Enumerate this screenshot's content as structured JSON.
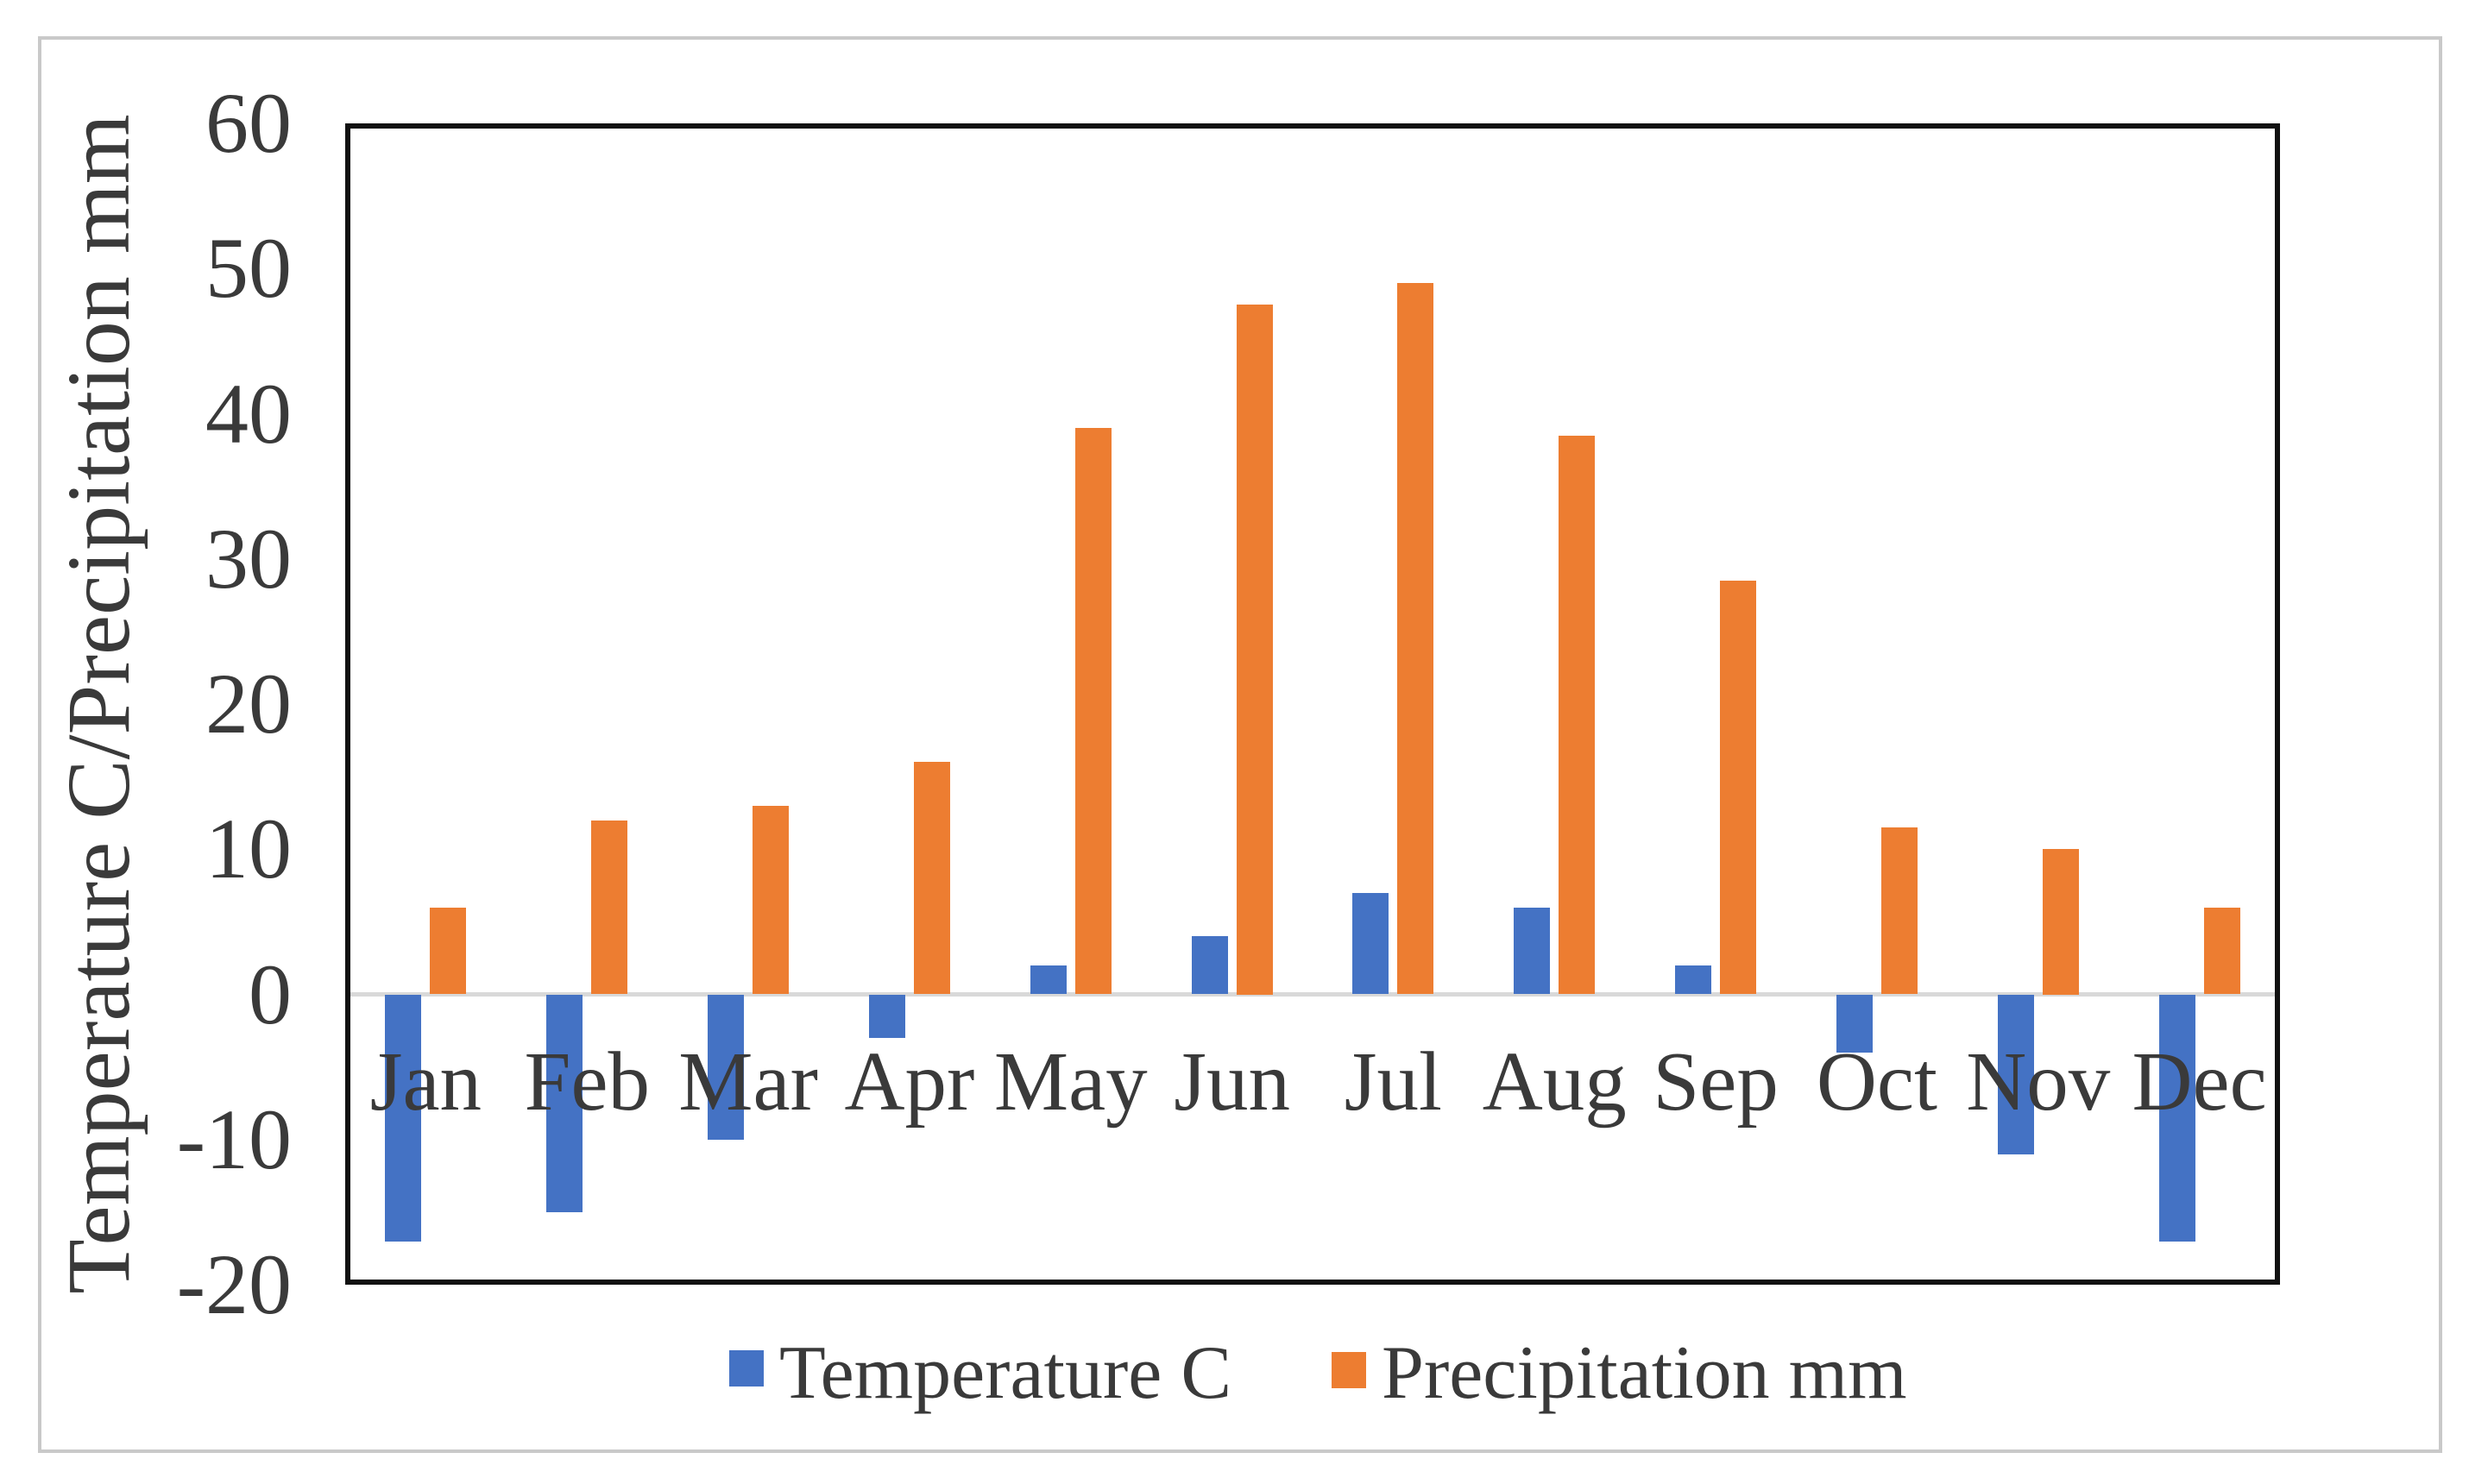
{
  "chart_data": {
    "type": "bar",
    "title": "",
    "categories": [
      "Jan",
      "Feb",
      "Mar",
      "Apr",
      "May",
      "Jun",
      "Jul",
      "Aug",
      "Sep",
      "Oct",
      "Nov",
      "Dec"
    ],
    "series": [
      {
        "name": "Temperature C",
        "color": "#4472C4",
        "values": [
          -17,
          -15,
          -10,
          -3,
          2,
          4,
          7,
          6,
          2,
          -4,
          -11,
          -17
        ]
      },
      {
        "name": "Precipitation mm",
        "color": "#ED7D31",
        "values": [
          6,
          12,
          13,
          16,
          39,
          47.5,
          49,
          38.5,
          28.5,
          11.5,
          10,
          6
        ]
      }
    ],
    "ylabel": "Temperature C/Precipitation mm",
    "xlabel": "",
    "ylim": [
      -20,
      60
    ],
    "yticks": [
      60,
      50,
      40,
      30,
      20,
      10,
      0,
      -10,
      -20
    ],
    "grid": false,
    "legend_position": "bottom",
    "plot_border_color": "#111111",
    "zero_line_color": "#d9d9d9",
    "text_color": "#3a3a3a"
  }
}
